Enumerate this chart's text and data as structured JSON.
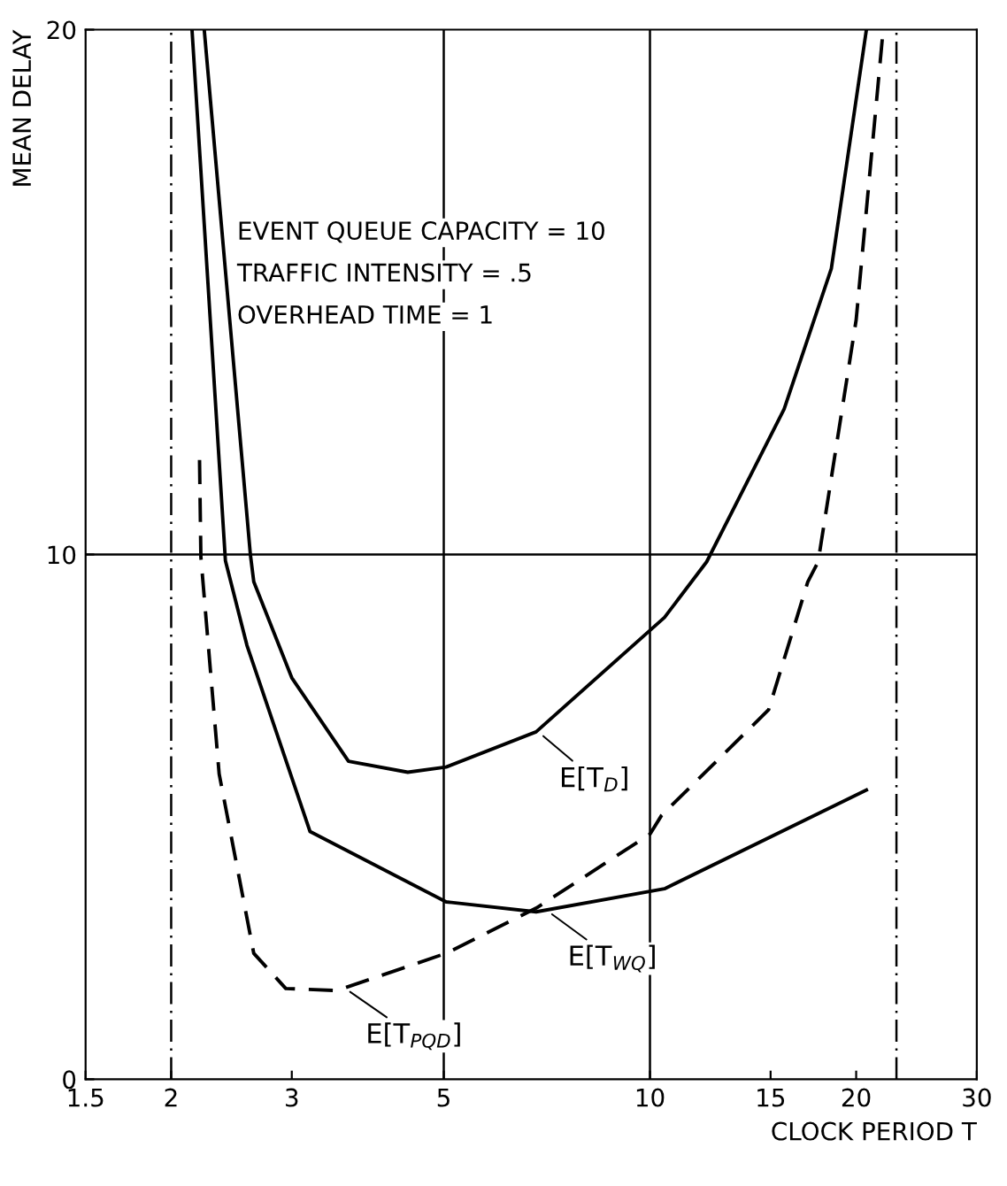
{
  "chart_data": {
    "type": "line",
    "xlabel": "CLOCK PERIOD T",
    "ylabel": "MEAN DELAY",
    "log": "x",
    "xlim": [
      1.5,
      30
    ],
    "xticks": [
      1.5,
      2,
      3,
      5,
      10,
      15,
      20,
      30
    ],
    "ylim": [
      0,
      20
    ],
    "yticks": [
      0,
      10,
      20
    ],
    "grid": false,
    "marker": "none",
    "series": [
      {
        "color": "#000000",
        "line_style": "solid",
        "x": [
          2.235,
          2.61,
          2.64,
          3.0,
          3.63,
          4.43,
          5.04,
          6.82,
          10.5,
          12.1,
          15.7,
          18.4,
          20.7
        ],
        "values": [
          20,
          10,
          9.48,
          7.65,
          6.06,
          5.85,
          5.95,
          6.62,
          8.8,
          9.86,
          12.77,
          15.45,
          20
        ]
      },
      {
        "color": "#000000",
        "line_style": "solid",
        "x": [
          2.145,
          2.4,
          2.58,
          3.19,
          5.04,
          6.82,
          10.5,
          20.7
        ],
        "values": [
          20,
          9.88,
          8.27,
          4.72,
          3.38,
          3.19,
          3.63,
          5.51
        ]
      },
      {
        "color": "#000000",
        "line_style": "dashed",
        "x": [
          2.2,
          2.21,
          2.35,
          2.64,
          2.94,
          3.49,
          5.04,
          6.82,
          10.0,
          10.4,
          14.9,
          17.0,
          17.6,
          20.0,
          21.9
        ],
        "values": [
          11.8,
          9.95,
          5.82,
          2.4,
          1.73,
          1.69,
          2.4,
          3.26,
          4.67,
          5.03,
          7.04,
          9.48,
          9.86,
          14.47,
          20
        ]
      }
    ],
    "ref_lines": [
      {
        "axis": "x",
        "value": 5,
        "color": "#000000",
        "line_style": "solid"
      },
      {
        "axis": "x",
        "value": 10,
        "color": "#000000",
        "line_style": "solid"
      },
      {
        "axis": "y",
        "value": 10,
        "color": "#000000",
        "line_style": "solid"
      },
      {
        "axis": "x",
        "value": 2,
        "color": "#000000",
        "line_style": "dashdot"
      },
      {
        "axis": "x",
        "value": 22.9,
        "color": "#000000",
        "line_style": "dashdot"
      }
    ],
    "annotations": [
      "EVENT QUEUE CAPACITY = 10",
      "TRAFFIC INTENSITY = .5",
      "OVERHEAD TIME = 1",
      {
        "text": "E[T$_{D}$]",
        "x": 6.9,
        "y": 6.6
      },
      {
        "text": "E[T$_{WQ}$]",
        "x": 7.1,
        "y": 3.2
      },
      {
        "text": "E[T$_{PQD}$]",
        "x": 3.6,
        "y": 1.72
      }
    ]
  }
}
